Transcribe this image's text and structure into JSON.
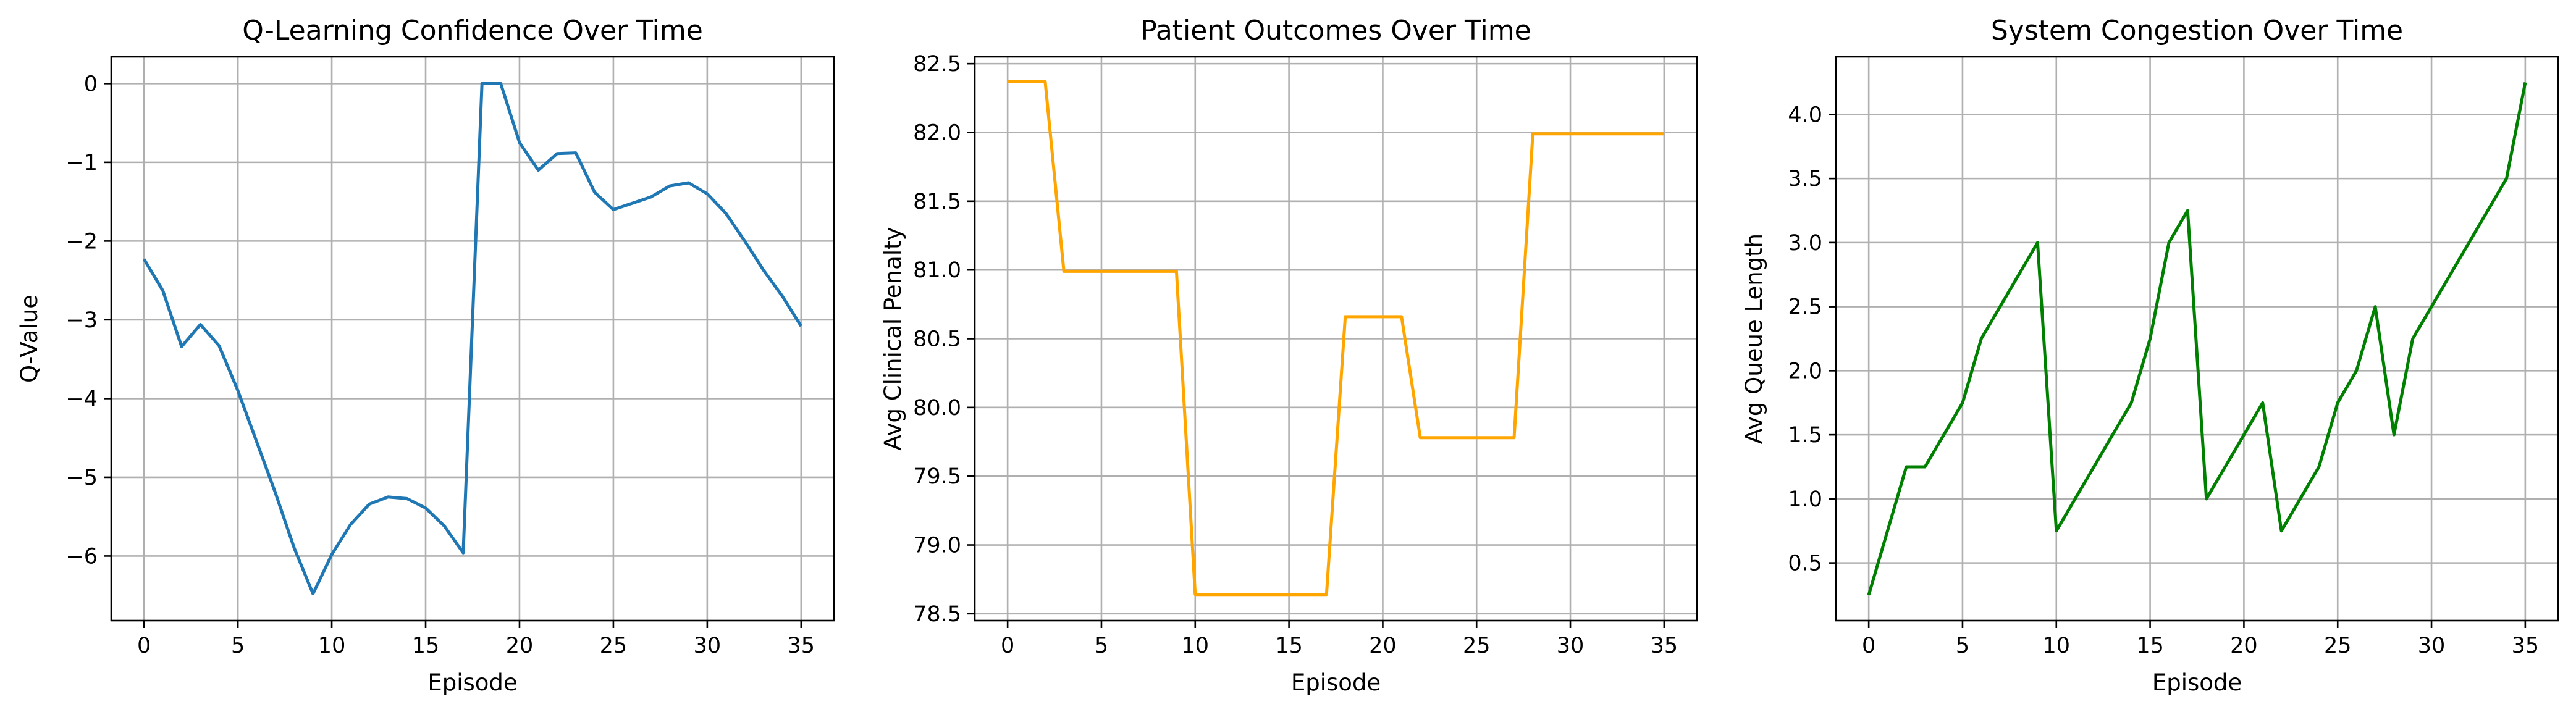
{
  "chart_data": [
    {
      "type": "line",
      "title": "Q-Learning Confidence Over Time",
      "xlabel": "Episode",
      "ylabel": "Q-Value",
      "xlim": [
        -1.75,
        36.75
      ],
      "ylim": [
        -6.82,
        0.34
      ],
      "xticks": [
        0,
        5,
        10,
        15,
        20,
        25,
        30,
        35
      ],
      "yticks": [
        -6,
        -5,
        -4,
        -3,
        -2,
        -1,
        0
      ],
      "ytick_labels": [
        "−6",
        "−5",
        "−4",
        "−3",
        "−2",
        "−1",
        "0"
      ],
      "grid": true,
      "color": "#1f77b4",
      "x": [
        0,
        1,
        2,
        3,
        4,
        5,
        6,
        7,
        8,
        9,
        10,
        11,
        12,
        13,
        14,
        15,
        16,
        17,
        18,
        19,
        20,
        21,
        22,
        23,
        24,
        25,
        26,
        27,
        28,
        29,
        30,
        31,
        32,
        33,
        34,
        35
      ],
      "y": [
        -2.23,
        -2.63,
        -3.34,
        -3.06,
        -3.33,
        -3.9,
        -4.55,
        -5.2,
        -5.9,
        -6.48,
        -5.98,
        -5.6,
        -5.34,
        -5.25,
        -5.27,
        -5.39,
        -5.62,
        -5.96,
        0.0,
        0.0,
        -0.75,
        -1.1,
        -0.89,
        -0.88,
        -1.38,
        -1.6,
        -1.52,
        -1.44,
        -1.3,
        -1.26,
        -1.4,
        -1.65,
        -2.0,
        -2.37,
        -2.7,
        -3.08
      ]
    },
    {
      "type": "line",
      "title": "Patient Outcomes Over Time",
      "xlabel": "Episode",
      "ylabel": "Avg Clinical Penalty",
      "xlim": [
        -1.75,
        36.75
      ],
      "ylim": [
        78.45,
        82.55
      ],
      "xticks": [
        0,
        5,
        10,
        15,
        20,
        25,
        30,
        35
      ],
      "yticks": [
        78.5,
        79.0,
        79.5,
        80.0,
        80.5,
        81.0,
        81.5,
        82.0,
        82.5
      ],
      "ytick_labels": [
        "78.5",
        "79.0",
        "79.5",
        "80.0",
        "80.5",
        "81.0",
        "81.5",
        "82.0",
        "82.5"
      ],
      "grid": true,
      "color": "#ffa500",
      "x": [
        0,
        1,
        2,
        3,
        4,
        5,
        6,
        7,
        8,
        9,
        10,
        11,
        12,
        13,
        14,
        15,
        16,
        17,
        18,
        19,
        20,
        21,
        22,
        23,
        24,
        25,
        26,
        27,
        28,
        29,
        30,
        31,
        32,
        33,
        34,
        35
      ],
      "y": [
        82.37,
        82.37,
        82.37,
        80.99,
        80.99,
        80.99,
        80.99,
        80.99,
        80.99,
        80.99,
        78.64,
        78.64,
        78.64,
        78.64,
        78.64,
        78.64,
        78.64,
        78.64,
        80.66,
        80.66,
        80.66,
        80.66,
        79.78,
        79.78,
        79.78,
        79.78,
        79.78,
        79.78,
        81.99,
        81.99,
        81.99,
        81.99,
        81.99,
        81.99,
        81.99,
        81.99
      ]
    },
    {
      "type": "line",
      "title": "System Congestion Over Time",
      "xlabel": "Episode",
      "ylabel": "Avg Queue Length",
      "xlim": [
        -1.75,
        36.75
      ],
      "ylim": [
        0.05,
        4.45
      ],
      "xticks": [
        0,
        5,
        10,
        15,
        20,
        25,
        30,
        35
      ],
      "yticks": [
        0.5,
        1.0,
        1.5,
        2.0,
        2.5,
        3.0,
        3.5,
        4.0
      ],
      "ytick_labels": [
        "0.5",
        "1.0",
        "1.5",
        "2.0",
        "2.5",
        "3.0",
        "3.5",
        "4.0"
      ],
      "grid": true,
      "color": "#008000",
      "x": [
        0,
        2,
        3,
        5,
        6,
        9,
        10,
        14,
        15,
        16,
        17,
        18,
        21,
        22,
        24,
        25,
        26,
        27,
        28,
        29,
        34,
        35
      ],
      "y": [
        0.25,
        1.25,
        1.25,
        1.75,
        2.25,
        3.0,
        0.75,
        1.75,
        2.25,
        3.0,
        3.25,
        1.0,
        1.75,
        0.75,
        1.25,
        1.75,
        2.0,
        2.5,
        1.5,
        2.25,
        3.5,
        4.25
      ]
    }
  ]
}
